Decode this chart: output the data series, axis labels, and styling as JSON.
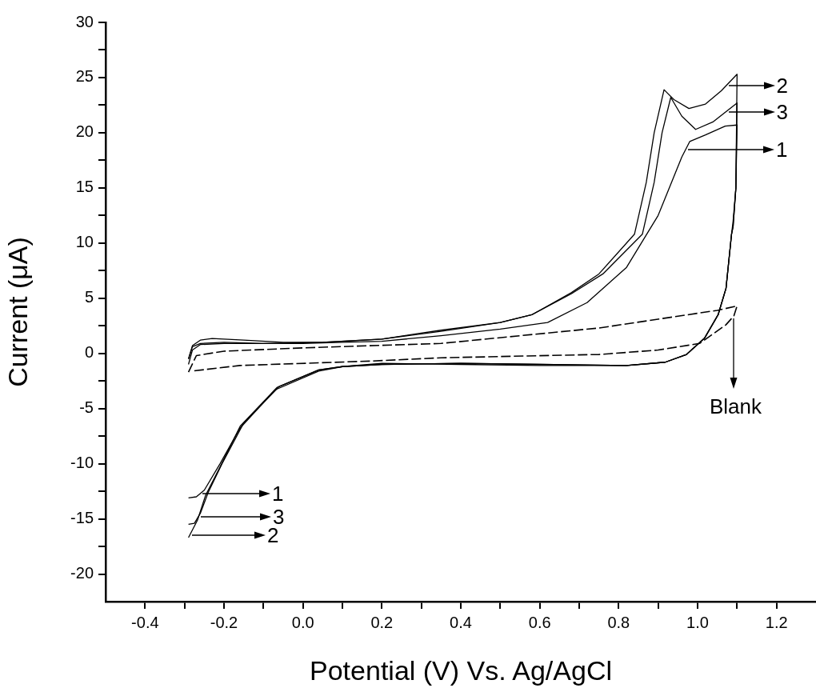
{
  "chart_data": {
    "type": "line",
    "xlabel": "Potential (V) Vs. Ag/AgCl",
    "ylabel": "Current (μA)",
    "xlim": [
      -0.5,
      1.3
    ],
    "ylim": [
      -22.5,
      30
    ],
    "xticks": [
      -0.4,
      {
        "value": -0.3,
        "label": null
      },
      -0.2,
      {
        "value": -0.1,
        "label": null
      },
      {
        "value": 0,
        "label": "0.0"
      },
      {
        "value": 0.1,
        "label": null
      },
      0.2,
      {
        "value": 0.3,
        "label": null
      },
      0.4,
      {
        "value": 0.5,
        "label": null
      },
      0.6,
      {
        "value": 0.7,
        "label": null
      },
      0.8,
      {
        "value": 0.9,
        "label": null
      },
      {
        "value": 1,
        "label": "1.0"
      },
      {
        "value": 1.1,
        "label": null
      },
      1.2
    ],
    "yticks": [
      -20,
      {
        "value": -17.5,
        "label": null
      },
      -15,
      {
        "value": -12.5,
        "label": null
      },
      -10,
      {
        "value": -7.5,
        "label": null
      },
      -5,
      {
        "value": -2.5,
        "label": null
      },
      0,
      {
        "value": 2.5,
        "label": null
      },
      5,
      {
        "value": 7.5,
        "label": null
      },
      10,
      {
        "value": 12.5,
        "label": null
      },
      15,
      {
        "value": 17.5,
        "label": null
      },
      20,
      {
        "value": 22.5,
        "label": null
      },
      25,
      {
        "value": 27.5,
        "label": null
      },
      30
    ],
    "series": [
      {
        "color": "#000000",
        "line_style": "solid",
        "x": [
          -0.29,
          -0.28,
          -0.26,
          -0.2,
          -0.1,
          0,
          0.1,
          0.2,
          0.35,
          0.5,
          0.62,
          0.72,
          0.82,
          0.9,
          0.96,
          0.98,
          1.02,
          1.07,
          1.1,
          1.097,
          1.09,
          1.086,
          1.072,
          1.052,
          1.018,
          0.972,
          0.918,
          0.82,
          0.6,
          0.4,
          0.2,
          0.1,
          0.04,
          -0.07,
          -0.16,
          -0.21,
          -0.25,
          -0.27,
          -0.29
        ],
        "values": [
          -0.5,
          0.6,
          0.9,
          1.0,
          0.9,
          0.9,
          1.0,
          1.1,
          1.6,
          2.2,
          2.8,
          4.6,
          7.8,
          12.5,
          17.8,
          19.2,
          19.8,
          20.6,
          20.7,
          15,
          12,
          10.8,
          5.9,
          3.5,
          1.4,
          -0.1,
          -0.8,
          -1.1,
          -1.1,
          -1.0,
          -0.9,
          -1.2,
          -1.6,
          -3.3,
          -6.8,
          -10.0,
          -12.4,
          -13.0,
          -13.1
        ]
      },
      {
        "color": "#000000",
        "line_style": "solid",
        "x": [
          -0.29,
          -0.28,
          -0.26,
          -0.23,
          -0.15,
          -0.05,
          0.05,
          0.2,
          0.35,
          0.5,
          0.58,
          0.68,
          0.75,
          0.84,
          0.87,
          0.89,
          0.915,
          0.94,
          0.978,
          1.02,
          1.06,
          1.1,
          1.097,
          1.09,
          1.086,
          1.072,
          1.052,
          1.018,
          0.972,
          0.918,
          0.82,
          0.6,
          0.4,
          0.2,
          0.1,
          0.04,
          -0.066,
          -0.159,
          -0.213,
          -0.247,
          -0.267,
          -0.29
        ],
        "values": [
          -0.5,
          0.7,
          1.2,
          1.35,
          1.2,
          1.0,
          1.0,
          1.3,
          2.1,
          2.8,
          3.5,
          5.5,
          7.2,
          10.8,
          15.5,
          20,
          23.9,
          23.0,
          22.2,
          22.6,
          23.8,
          25.3,
          15,
          11.5,
          10.8,
          5.9,
          3.5,
          1.4,
          -0.1,
          -0.8,
          -1.1,
          -1.0,
          -0.9,
          -1.0,
          -1.2,
          -1.5,
          -3.1,
          -6.6,
          -10.5,
          -12.9,
          -15.1,
          -16.7
        ]
      },
      {
        "color": "#000000",
        "line_style": "solid",
        "x": [
          -0.29,
          -0.28,
          -0.26,
          -0.2,
          -0.1,
          0.05,
          0.2,
          0.35,
          0.5,
          0.58,
          0.68,
          0.76,
          0.86,
          0.89,
          0.91,
          0.932,
          0.96,
          0.995,
          1.04,
          1.1,
          1.097,
          1.09,
          1.086,
          1.072,
          1.052,
          1.018,
          0.972,
          0.918,
          0.82,
          0.6,
          0.4,
          0.2,
          0.1,
          0.04,
          -0.06,
          -0.15,
          -0.205,
          -0.24,
          -0.26,
          -0.275,
          -0.29
        ],
        "values": [
          -1.0,
          0.3,
          0.8,
          0.9,
          0.9,
          1.0,
          1.3,
          2.0,
          2.8,
          3.5,
          5.4,
          7.2,
          10.8,
          15.5,
          20,
          23.2,
          21.5,
          20.3,
          21.0,
          22.7,
          15,
          11.5,
          10.8,
          5.9,
          3.5,
          1.4,
          -0.1,
          -0.8,
          -1.1,
          -1.0,
          -0.9,
          -1.0,
          -1.2,
          -1.5,
          -3.0,
          -6.3,
          -10.0,
          -12.6,
          -14.5,
          -15.4,
          -15.5
        ]
      },
      {
        "color": "#000000",
        "line_style": "dashed",
        "x": [
          -0.29,
          -0.27,
          -0.2,
          0,
          0.35,
          0.75,
          1.05,
          1.1,
          1.092,
          1.072,
          1.005,
          0.9,
          0.75,
          0.35,
          0.17,
          -0.16,
          -0.28
        ],
        "values": [
          -1.7,
          -0.2,
          0.2,
          0.5,
          0.9,
          2.3,
          3.9,
          4.3,
          3.4,
          2.6,
          0.9,
          0.3,
          -0.1,
          -0.4,
          -0.7,
          -1.1,
          -1.6
        ]
      }
    ],
    "annotations": [
      {
        "text": "2",
        "x": 1.072,
        "y": 24.25
      },
      {
        "text": "3",
        "x": 1.072,
        "y": 21.9
      },
      "1",
      "Blank",
      "1",
      "3",
      "2"
    ]
  }
}
